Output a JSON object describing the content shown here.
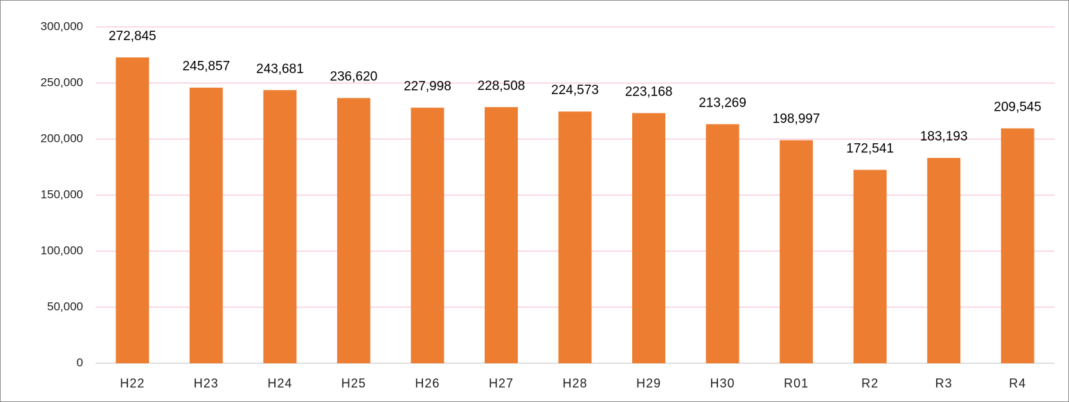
{
  "chart_data": {
    "type": "bar",
    "categories": [
      "H22",
      "H23",
      "H24",
      "H25",
      "H26",
      "H27",
      "H28",
      "H29",
      "H30",
      "R01",
      "R2",
      "R3",
      "R4"
    ],
    "values": [
      272845,
      245857,
      243681,
      236620,
      227998,
      228508,
      224573,
      223168,
      213269,
      198997,
      172541,
      183193,
      209545
    ],
    "value_labels": [
      "272,845",
      "245,857",
      "243,681",
      "236,620",
      "227,998",
      "228,508",
      "224,573",
      "223,168",
      "213,269",
      "198,997",
      "172,541",
      "183,193",
      "209,545"
    ],
    "color": "#ed7d31",
    "ylim": [
      0,
      300000
    ],
    "yticks": [
      0,
      {
        "value": 50000,
        "label": "50,000"
      },
      {
        "value": 100000,
        "label": "100,000"
      },
      {
        "value": 150000,
        "label": "150,000"
      },
      {
        "value": 200000,
        "label": "200,000"
      },
      {
        "value": 250000,
        "label": "250,000"
      },
      {
        "value": 300000,
        "label": "300,000"
      }
    ],
    "grid": true
  }
}
